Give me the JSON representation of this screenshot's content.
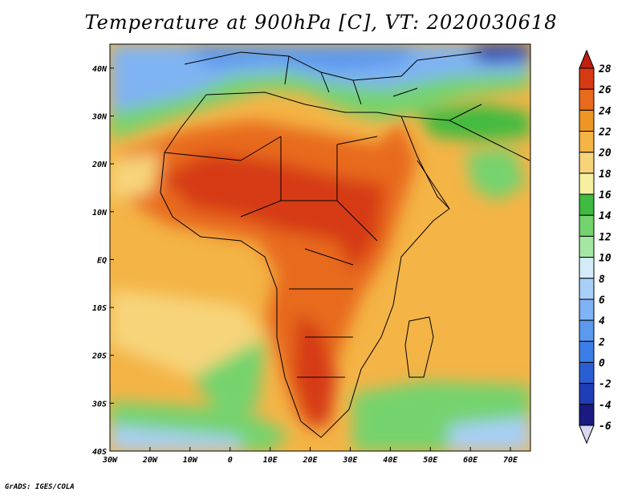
{
  "title": "Temperature at 900hPa [C], VT: 2020030618",
  "credit": "GrADS: IGES/COLA",
  "map": {
    "projection": "latlon",
    "lon_range": [
      -30,
      75
    ],
    "lat_range": [
      -40,
      45
    ],
    "lon_ticks": [
      {
        "value": -30,
        "label": "30W"
      },
      {
        "value": -20,
        "label": "20W"
      },
      {
        "value": -10,
        "label": "10W"
      },
      {
        "value": 0,
        "label": "0"
      },
      {
        "value": 10,
        "label": "10E"
      },
      {
        "value": 20,
        "label": "20E"
      },
      {
        "value": 30,
        "label": "30E"
      },
      {
        "value": 40,
        "label": "40E"
      },
      {
        "value": 50,
        "label": "50E"
      },
      {
        "value": 60,
        "label": "60E"
      },
      {
        "value": 70,
        "label": "70E"
      }
    ],
    "lat_ticks": [
      {
        "value": 40,
        "label": "40N"
      },
      {
        "value": 30,
        "label": "30N"
      },
      {
        "value": 20,
        "label": "20N"
      },
      {
        "value": 10,
        "label": "10N"
      },
      {
        "value": 0,
        "label": "EQ"
      },
      {
        "value": -10,
        "label": "10S"
      },
      {
        "value": -20,
        "label": "20S"
      },
      {
        "value": -30,
        "label": "30S"
      },
      {
        "value": -40,
        "label": "40S"
      }
    ]
  },
  "colorbar": {
    "levels": [
      -6,
      -4,
      -2,
      0,
      2,
      4,
      6,
      8,
      10,
      12,
      14,
      16,
      18,
      20,
      22,
      24,
      26,
      28
    ],
    "level_labels": [
      "-6",
      "-4",
      "-2",
      "0",
      "2",
      "4",
      "6",
      "8",
      "10",
      "12",
      "14",
      "16",
      "18",
      "20",
      "22",
      "24",
      "26",
      "28"
    ],
    "colors": [
      "#1a1a80",
      "#1f3db4",
      "#2a5fd4",
      "#3c7ee6",
      "#5b9aee",
      "#7fb3f3",
      "#a8cff7",
      "#d4ecfa",
      "#a6e6a3",
      "#74d36e",
      "#3fbb3f",
      "#f7f0a0",
      "#f7d47a",
      "#f4b446",
      "#ee9624",
      "#e86a1c",
      "#d63a12",
      "#c01f10",
      "#d8d8f0"
    ],
    "under_color": "#d8d8f0",
    "over_color": "#c01f10"
  }
}
